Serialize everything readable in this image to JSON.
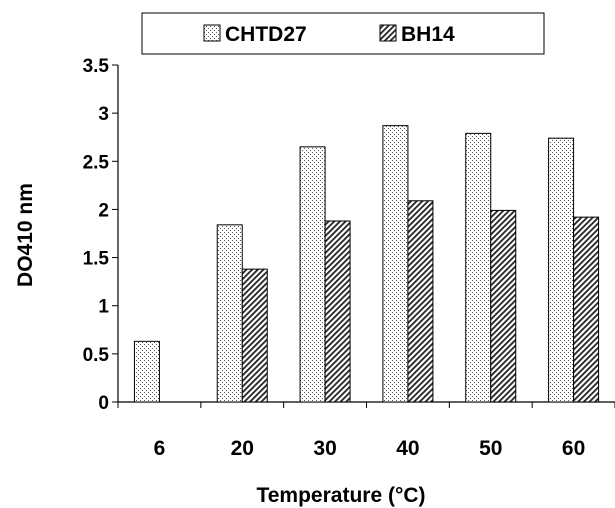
{
  "chart_data": {
    "type": "bar",
    "title": "",
    "xlabel": "Temperature (°C)",
    "ylabel": "DO410 nm",
    "categories": [
      "6",
      "20",
      "30",
      "40",
      "50",
      "60"
    ],
    "series": [
      {
        "name": "CHTD27",
        "values": [
          0.63,
          1.84,
          2.65,
          2.87,
          2.79,
          2.74
        ],
        "pattern": "dots"
      },
      {
        "name": "BH14",
        "values": [
          null,
          1.38,
          1.88,
          2.09,
          1.99,
          1.92
        ],
        "pattern": "diagonal-hatch"
      }
    ],
    "ylim": [
      0,
      3.5
    ],
    "yticks": [
      "0",
      "0.5",
      "1",
      "1.5",
      "2",
      "2.5",
      "3",
      "3.5"
    ],
    "grid": false,
    "legend_position": "top"
  }
}
